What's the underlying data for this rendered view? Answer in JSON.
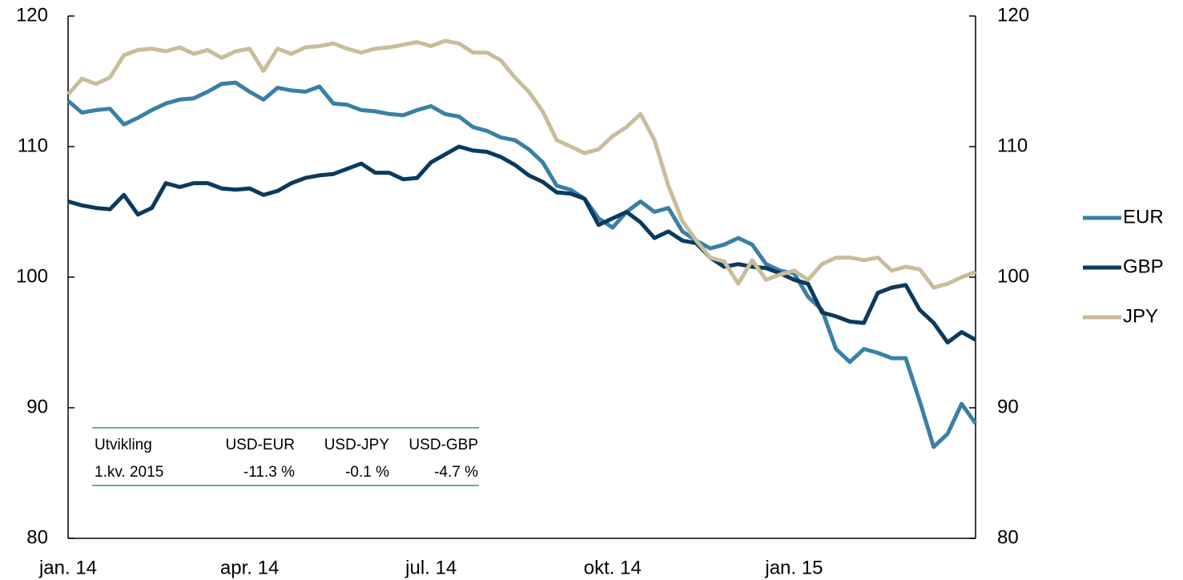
{
  "chart_data": {
    "type": "line",
    "categories": [
      "jan. 14",
      null,
      null,
      null,
      null,
      null,
      null,
      null,
      null,
      null,
      null,
      null,
      null,
      "apr. 14",
      null,
      null,
      null,
      null,
      null,
      null,
      null,
      null,
      null,
      null,
      null,
      null,
      "jul. 14",
      null,
      null,
      null,
      null,
      null,
      null,
      null,
      null,
      null,
      null,
      null,
      null,
      "okt. 14",
      null,
      null,
      null,
      null,
      null,
      null,
      null,
      null,
      null,
      null,
      null,
      null,
      "jan. 15",
      null,
      null,
      null,
      null,
      null,
      null,
      null,
      null,
      null,
      null,
      null,
      null,
      null
    ],
    "series": [
      {
        "name": "EUR",
        "color": "#3a7fa6",
        "values": [
          113.5,
          112.6,
          112.8,
          112.9,
          111.7,
          112.2,
          112.8,
          113.3,
          113.6,
          113.7,
          114.2,
          114.8,
          114.9,
          114.2,
          113.6,
          114.5,
          114.3,
          114.2,
          114.6,
          113.3,
          113.2,
          112.8,
          112.7,
          112.5,
          112.4,
          112.8,
          113.1,
          112.5,
          112.3,
          111.5,
          111.2,
          110.7,
          110.5,
          109.8,
          108.8,
          107,
          106.7,
          106,
          104.5,
          103.8,
          105,
          105.8,
          105,
          105.3,
          103.5,
          102.8,
          102.2,
          102.5,
          103,
          102.5,
          101,
          100.5,
          100.3,
          98.5,
          97.5,
          94.5,
          93.5,
          94.5,
          94.2,
          93.8,
          93.8,
          90.5,
          87,
          88,
          90.3,
          88.8
        ]
      },
      {
        "name": "GBP",
        "color": "#0b3a5e",
        "values": [
          105.8,
          105.5,
          105.3,
          105.2,
          106.3,
          104.8,
          105.3,
          107.2,
          106.9,
          107.2,
          107.2,
          106.8,
          106.7,
          106.8,
          106.3,
          106.6,
          107.2,
          107.6,
          107.8,
          107.9,
          108.3,
          108.7,
          108,
          108,
          107.5,
          107.6,
          108.8,
          109.4,
          110,
          109.7,
          109.6,
          109.2,
          108.6,
          107.8,
          107.3,
          106.5,
          106.4,
          106,
          104,
          104.5,
          105,
          104.2,
          103,
          103.5,
          102.8,
          102.6,
          101.5,
          100.8,
          101,
          100.8,
          100.7,
          100.3,
          99.8,
          99.5,
          97.3,
          97,
          96.6,
          96.5,
          98.8,
          99.2,
          99.4,
          97.5,
          96.5,
          95,
          95.8,
          95.2
        ]
      },
      {
        "name": "JPY",
        "color": "#c9bd9b",
        "values": [
          114,
          115.2,
          114.8,
          115.3,
          117,
          117.4,
          117.5,
          117.3,
          117.6,
          117.1,
          117.4,
          116.8,
          117.3,
          117.5,
          115.8,
          117.5,
          117.1,
          117.6,
          117.7,
          117.9,
          117.5,
          117.2,
          117.5,
          117.6,
          117.8,
          118,
          117.7,
          118.1,
          117.9,
          117.2,
          117.2,
          116.6,
          115.3,
          114.2,
          112.7,
          110.5,
          110,
          109.5,
          109.8,
          110.8,
          111.5,
          112.5,
          110.5,
          107,
          104.3,
          102.8,
          101.5,
          101.2,
          99.5,
          101.3,
          99.8,
          100.2,
          100.5,
          99.8,
          101,
          101.5,
          101.5,
          101.3,
          101.5,
          100.5,
          100.8,
          100.6,
          99.2,
          99.5,
          100,
          100.4
        ]
      }
    ],
    "ylim": [
      80,
      120
    ],
    "yticks": [
      80,
      90,
      100,
      110,
      120
    ],
    "y2lim": [
      80,
      120
    ],
    "y2ticks": [
      80,
      90,
      100,
      110,
      120
    ],
    "legend": "right",
    "table": {
      "header": [
        "Utvikling",
        "USD-EUR",
        "USD-JPY",
        "USD-GBP"
      ],
      "rows": [
        [
          "1.kv. 2015",
          "-11.3 %",
          "-0.1 %",
          "-4.7 %"
        ]
      ]
    }
  }
}
